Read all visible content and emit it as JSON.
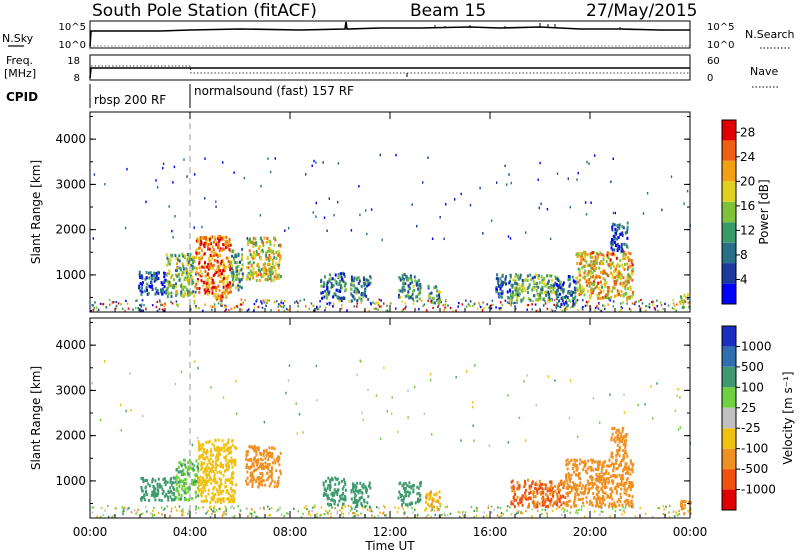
{
  "header": {
    "station": "South Pole Station (fitACF)",
    "beam": "Beam 15",
    "date": "27/May/2015"
  },
  "top_panels": {
    "nsky": {
      "label_left": "N.Sky",
      "label_right": "N.Search",
      "ticks_left": [
        "10^5",
        "10^0"
      ],
      "ticks_right": [
        "10^5",
        "10^0"
      ]
    },
    "freq": {
      "label_left_1": "Freq.",
      "label_left_2": "[MHz]",
      "label_right": "Nave",
      "ticks_left": [
        "18",
        "8"
      ],
      "ticks_right": [
        "60",
        "0"
      ]
    },
    "cpid": {
      "label": "CPID",
      "segments": [
        {
          "start_hour": 0,
          "end_hour": 4,
          "text": "rbsp 200 RF"
        },
        {
          "start_hour": 4,
          "end_hour": 24,
          "text": "normalsound (fast) 157 RF"
        }
      ]
    }
  },
  "chart_data": [
    {
      "type": "heatmap",
      "title": "",
      "ylabel": "Slant Range [km]",
      "xlabel": "",
      "xlim": [
        0,
        24
      ],
      "ylim": [
        180,
        4600
      ],
      "yticks": [
        "1000",
        "2000",
        "3000",
        "4000"
      ],
      "colorbar": {
        "label": "Power [dB]",
        "ticks": [
          "4",
          "8",
          "12",
          "16",
          "20",
          "24",
          "28"
        ],
        "range": [
          0,
          30
        ],
        "colors": [
          "#0000ff",
          "#1a3a9e",
          "#2a6f8a",
          "#3a9a6a",
          "#7fc23a",
          "#e0d020",
          "#f0a010",
          "#f06010",
          "#e00000"
        ]
      },
      "echo_regions": [
        {
          "t": [
            1.9,
            3.0
          ],
          "r": [
            600,
            1100
          ],
          "value": 6
        },
        {
          "t": [
            3.0,
            4.2
          ],
          "r": [
            550,
            1500
          ],
          "value": 14
        },
        {
          "t": [
            4.2,
            5.6
          ],
          "r": [
            500,
            1900
          ],
          "value": 24
        },
        {
          "t": [
            5.6,
            6.1
          ],
          "r": [
            700,
            1600
          ],
          "value": 12
        },
        {
          "t": [
            6.2,
            7.6
          ],
          "r": [
            900,
            1850
          ],
          "value": 18
        },
        {
          "t": [
            9.2,
            10.2
          ],
          "r": [
            500,
            1100
          ],
          "value": 8
        },
        {
          "t": [
            10.4,
            11.2
          ],
          "r": [
            450,
            1000
          ],
          "value": 10
        },
        {
          "t": [
            12.3,
            13.2
          ],
          "r": [
            500,
            1050
          ],
          "value": 10
        },
        {
          "t": [
            13.5,
            14.0
          ],
          "r": [
            400,
            800
          ],
          "value": 12
        },
        {
          "t": [
            16.2,
            16.8
          ],
          "r": [
            500,
            1050
          ],
          "value": 6
        },
        {
          "t": [
            16.8,
            18.6
          ],
          "r": [
            450,
            1050
          ],
          "value": 13
        },
        {
          "t": [
            18.6,
            19.4
          ],
          "r": [
            350,
            1000
          ],
          "value": 8
        },
        {
          "t": [
            19.4,
            21.7
          ],
          "r": [
            500,
            1550
          ],
          "value": 20
        },
        {
          "t": [
            20.8,
            21.5
          ],
          "r": [
            1550,
            2200
          ],
          "value": 6
        },
        {
          "t": [
            23.6,
            24.0
          ],
          "r": [
            300,
            600
          ],
          "value": 14
        }
      ]
    },
    {
      "type": "heatmap",
      "title": "",
      "ylabel": "Slant Range [km]",
      "xlabel": "Time UT",
      "xlim": [
        0,
        24
      ],
      "ylim": [
        180,
        4600
      ],
      "yticks": [
        "1000",
        "2000",
        "3000",
        "4000"
      ],
      "xticks": [
        "00:00",
        "04:00",
        "08:00",
        "12:00",
        "16:00",
        "20:00",
        "00:00"
      ],
      "colorbar": {
        "label": "Velocity [m s⁻¹]",
        "ticks": [
          "1000",
          "500",
          "100",
          "25",
          "-25",
          "-100",
          "-500",
          "-1000"
        ],
        "colors": [
          "#1a2fbf",
          "#2f6fb0",
          "#3f9a70",
          "#6fd040",
          "#c0c0c0",
          "#f0c010",
          "#f09020",
          "#f05010",
          "#e00000"
        ]
      },
      "echo_regions": [
        {
          "t": [
            2.0,
            3.4
          ],
          "r": [
            600,
            1100
          ],
          "value": 300
        },
        {
          "t": [
            3.4,
            4.3
          ],
          "r": [
            600,
            1500
          ],
          "value": 80
        },
        {
          "t": [
            4.3,
            5.8
          ],
          "r": [
            550,
            1950
          ],
          "value": -60
        },
        {
          "t": [
            6.2,
            7.6
          ],
          "r": [
            900,
            1800
          ],
          "value": -300
        },
        {
          "t": [
            9.3,
            10.2
          ],
          "r": [
            500,
            1100
          ],
          "value": 200
        },
        {
          "t": [
            10.4,
            11.2
          ],
          "r": [
            450,
            1000
          ],
          "value": 200
        },
        {
          "t": [
            12.3,
            13.2
          ],
          "r": [
            500,
            1000
          ],
          "value": 200
        },
        {
          "t": [
            13.4,
            14.0
          ],
          "r": [
            400,
            800
          ],
          "value": -80
        },
        {
          "t": [
            16.8,
            19.0
          ],
          "r": [
            450,
            1050
          ],
          "value": -600
        },
        {
          "t": [
            19.0,
            21.7
          ],
          "r": [
            450,
            1500
          ],
          "value": -300
        },
        {
          "t": [
            20.8,
            21.5
          ],
          "r": [
            1550,
            2200
          ],
          "value": -300
        },
        {
          "t": [
            23.6,
            24.0
          ],
          "r": [
            300,
            600
          ],
          "value": -300
        }
      ]
    }
  ]
}
